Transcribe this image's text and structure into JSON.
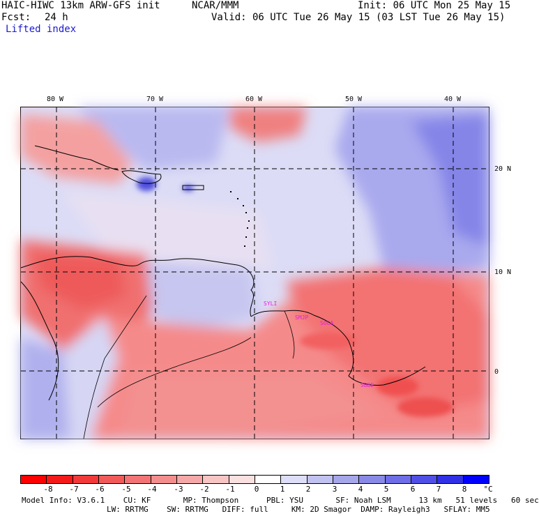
{
  "header": {
    "model_title": "HAIC-HIWC 13km ARW-GFS init",
    "org": "NCAR/MMM",
    "init_line": "Init: 06 UTC Mon 25 May 15",
    "fcst_label": "Fcst:",
    "fcst_value": "24 h",
    "valid_line": "Valid: 06 UTC Tue 26 May 15 (03 LST Tue 26 May 15)",
    "field_name": "Lifted index"
  },
  "map": {
    "lon_labels": [
      "80 W",
      "70 W",
      "60 W",
      "50 W",
      "40 W"
    ],
    "lat_labels": [
      "20 N",
      "10 N",
      "0"
    ],
    "stations": [
      "SYLI",
      "SMJP",
      "SOCA",
      "SBBE"
    ]
  },
  "colorbar": {
    "tick_labels": [
      "-8",
      "-7",
      "-6",
      "-5",
      "-4",
      "-3",
      "-2",
      "-1",
      "0",
      "1",
      "2",
      "3",
      "4",
      "5",
      "6",
      "7",
      "8"
    ],
    "unit": "°C",
    "colors": [
      "#ff0000",
      "#f51a1a",
      "#f23a3a",
      "#f25a5a",
      "#f27474",
      "#f38e8e",
      "#f5a8a8",
      "#f8c4c4",
      "#fbe0e0",
      "#ffffff",
      "#dedef8",
      "#c2c2f0",
      "#a6a6eb",
      "#8a8ae6",
      "#6e6ee6",
      "#5050e6",
      "#3030e6",
      "#0000ff"
    ]
  },
  "model_info": {
    "line1": "Model Info: V3.6.1    CU: KF       MP: Thompson      PBL: YSU       SF: Noah LSM      13 km   51 levels   60 sec",
    "line2": "LW: RRTMG    SW: RRTMG   DIFF: full     KM: 2D Smagor  DAMP: Rayleigh3   SFLAY: MM5"
  }
}
